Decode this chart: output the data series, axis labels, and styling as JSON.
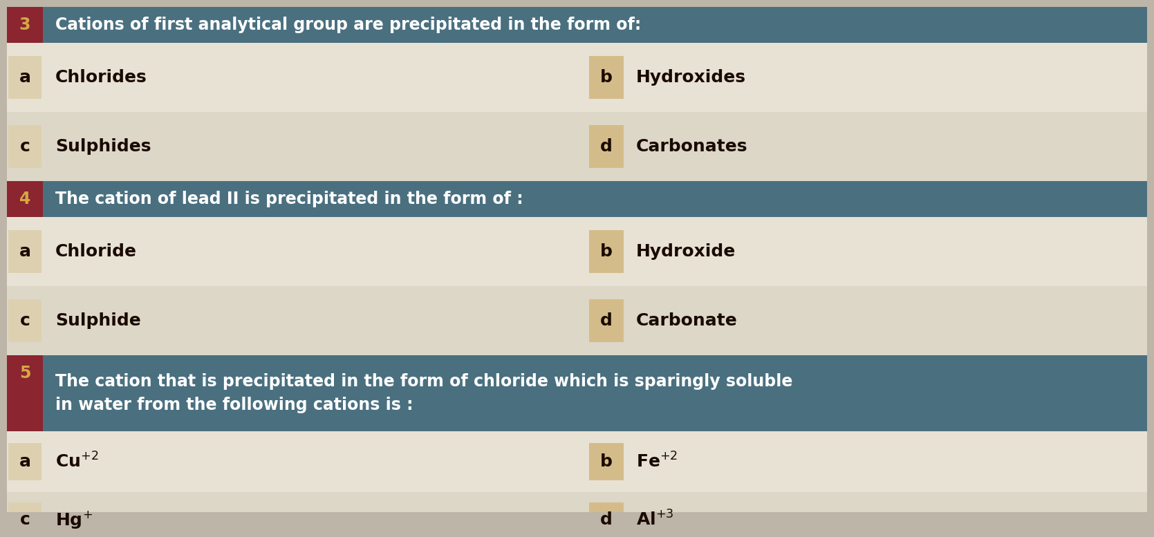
{
  "questions": [
    {
      "number": "3",
      "question": "Cations of first analytical group are precipitated in the form of:",
      "options_left": [
        {
          "label": "a",
          "text": "Chlorides"
        },
        {
          "label": "c",
          "text": "Sulphides"
        }
      ],
      "options_right": [
        {
          "label": "b",
          "text": "Hydroxides"
        },
        {
          "label": "d",
          "text": "Carbonates"
        }
      ]
    },
    {
      "number": "4",
      "question": "The cation of lead II is precipitated in the form of :",
      "options_left": [
        {
          "label": "a",
          "text": "Chloride"
        },
        {
          "label": "c",
          "text": "Sulphide"
        }
      ],
      "options_right": [
        {
          "label": "b",
          "text": "Hydroxide"
        },
        {
          "label": "d",
          "text": "Carbonate"
        }
      ]
    },
    {
      "number": "5",
      "question": "The cation that is precipitated in the form of chloride which is sparingly soluble\nin water from the following cations is :",
      "options_left": [
        {
          "label": "a",
          "text": "Cu$^{+2}$"
        },
        {
          "label": "c",
          "text": "Hg$^{+}$"
        }
      ],
      "options_right": [
        {
          "label": "b",
          "text": "Fe$^{+2}$"
        },
        {
          "label": "d",
          "text": "Al$^{+3}$"
        }
      ]
    }
  ],
  "header_bg": "#4a7080",
  "header_num_bg": "#8b2530",
  "header_text_color": "#ffffff",
  "header_num_color": "#d4a843",
  "row1_bg": "#e8e2d5",
  "row2_bg": "#ddd7c8",
  "label_color": "#1a0a00",
  "left_label_box_bg": "#ddd0b0",
  "right_label_box_bg": "#d4bc8a",
  "fig_bg": "#bdb5a8",
  "footer_bg": "#4a7080",
  "footer_text_color": "#ffffff"
}
